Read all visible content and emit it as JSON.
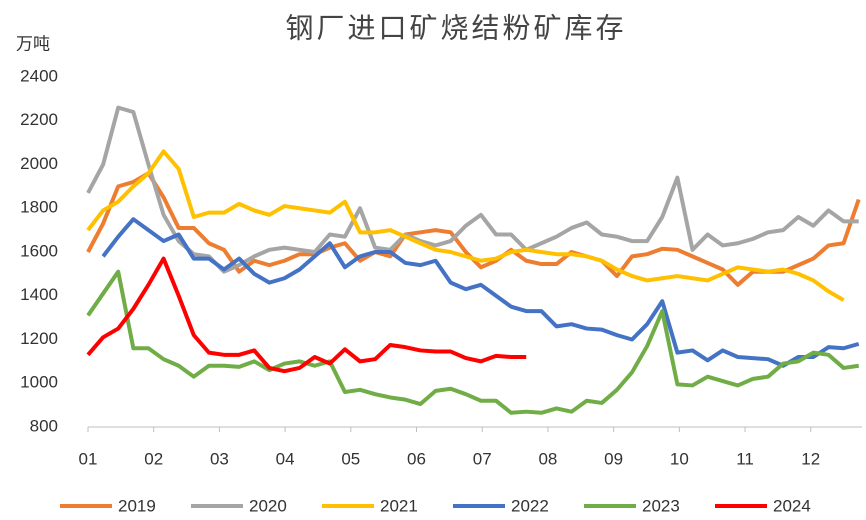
{
  "chart_data": {
    "type": "line",
    "title": "钢厂进口矿烧结粉矿库存",
    "y_label": "万吨",
    "x": [
      1,
      1.23,
      1.46,
      1.69,
      1.92,
      2.15,
      2.38,
      2.61,
      2.84,
      3.07,
      3.3,
      3.53,
      3.76,
      3.99,
      4.22,
      4.45,
      4.68,
      4.91,
      5.14,
      5.37,
      5.6,
      5.83,
      6.06,
      6.29,
      6.52,
      6.75,
      6.98,
      7.21,
      7.44,
      7.67,
      7.9,
      8.13,
      8.36,
      8.59,
      8.82,
      9.05,
      9.28,
      9.51,
      9.74,
      9.97,
      10.2,
      10.43,
      10.66,
      10.89,
      11.12,
      11.35,
      11.58,
      11.81,
      12.04,
      12.27,
      12.5,
      12.73
    ],
    "xlim": [
      1,
      12.78
    ],
    "xticks": [
      {
        "value": 1,
        "label": "01"
      },
      {
        "value": 2,
        "label": "02"
      },
      {
        "value": 3,
        "label": "03"
      },
      {
        "value": 4,
        "label": "04"
      },
      {
        "value": 5,
        "label": "05"
      },
      {
        "value": 6,
        "label": "06"
      },
      {
        "value": 7,
        "label": "07"
      },
      {
        "value": 8,
        "label": "08"
      },
      {
        "value": 9,
        "label": "09"
      },
      {
        "value": 10,
        "label": "10"
      },
      {
        "value": 11,
        "label": "11"
      },
      {
        "value": 12,
        "label": "12"
      }
    ],
    "ylim": [
      800,
      2400
    ],
    "yticks": [
      800,
      1000,
      1200,
      1400,
      1600,
      1800,
      2000,
      2200,
      2400
    ],
    "grid": false,
    "series": [
      {
        "name": "2019",
        "color": "#ED7D31",
        "values": [
          1600,
          1730,
          1900,
          1920,
          1960,
          1850,
          1710,
          1710,
          1640,
          1610,
          1510,
          1560,
          1540,
          1560,
          1590,
          1590,
          1620,
          1640,
          1560,
          1600,
          1580,
          1680,
          1690,
          1700,
          1690,
          1600,
          1530,
          1560,
          1610,
          1560,
          1545,
          1545,
          1600,
          1580,
          1560,
          1490,
          1580,
          1590,
          1615,
          1610,
          1580,
          1550,
          1520,
          1450,
          1510,
          1510,
          1510,
          1540,
          1570,
          1630,
          1640,
          1840
        ]
      },
      {
        "name": "2020",
        "color": "#A5A5A5",
        "values": [
          1870,
          2000,
          2260,
          2240,
          2000,
          1770,
          1650,
          1590,
          1580,
          1510,
          1540,
          1580,
          1610,
          1620,
          1610,
          1600,
          1680,
          1670,
          1800,
          1620,
          1610,
          1680,
          1650,
          1630,
          1650,
          1720,
          1770,
          1680,
          1680,
          1610,
          1640,
          1670,
          1710,
          1735,
          1680,
          1670,
          1650,
          1650,
          1760,
          1940,
          1610,
          1680,
          1630,
          1640,
          1660,
          1690,
          1700,
          1760,
          1720,
          1790,
          1740,
          1740
        ]
      },
      {
        "name": "2021",
        "color": "#FFC000",
        "values": [
          1700,
          1790,
          1830,
          1900,
          1960,
          2060,
          1980,
          1760,
          1780,
          1780,
          1820,
          1790,
          1770,
          1810,
          1800,
          1790,
          1780,
          1830,
          1690,
          1690,
          1700,
          1670,
          1640,
          1610,
          1600,
          1580,
          1560,
          1570,
          1600,
          1610,
          1600,
          1590,
          1590,
          1580,
          1560,
          1520,
          1490,
          1470,
          1480,
          1490,
          1480,
          1470,
          1500,
          1530,
          1520,
          1510,
          1520,
          1500,
          1470,
          1420,
          1380,
          null
        ]
      },
      {
        "name": "2022",
        "color": "#4472C4",
        "values": [
          null,
          1580,
          1670,
          1750,
          1700,
          1650,
          1680,
          1570,
          1570,
          1520,
          1570,
          1500,
          1460,
          1480,
          1520,
          1580,
          1640,
          1530,
          1580,
          1600,
          1600,
          1550,
          1540,
          1560,
          1460,
          1430,
          1450,
          1400,
          1350,
          1330,
          1330,
          1260,
          1270,
          1250,
          1245,
          1220,
          1200,
          1270,
          1375,
          1140,
          1150,
          1105,
          1150,
          1120,
          1115,
          1110,
          1080,
          1120,
          1120,
          1165,
          1160,
          1180
        ]
      },
      {
        "name": "2023",
        "color": "#70AD47",
        "values": [
          1310,
          1410,
          1510,
          1160,
          1160,
          1110,
          1080,
          1030,
          1080,
          1080,
          1075,
          1100,
          1060,
          1090,
          1100,
          1080,
          1100,
          960,
          970,
          950,
          935,
          925,
          905,
          965,
          975,
          950,
          920,
          920,
          865,
          870,
          865,
          885,
          870,
          920,
          910,
          970,
          1050,
          1170,
          1330,
          995,
          990,
          1030,
          1010,
          990,
          1020,
          1030,
          1090,
          1100,
          1140,
          1130,
          1070,
          1080
        ]
      },
      {
        "name": "2024",
        "color": "#FF0000",
        "values": [
          1130,
          1210,
          1250,
          1340,
          1450,
          1570,
          1400,
          1220,
          1140,
          1130,
          1130,
          1150,
          1070,
          1055,
          1070,
          1120,
          1090,
          1155,
          1100,
          1110,
          1175,
          1165,
          1150,
          1145,
          1145,
          1115,
          1100,
          1125,
          1120,
          1120,
          null,
          null,
          null,
          null,
          null,
          null,
          null,
          null,
          null,
          null,
          null,
          null,
          null,
          null,
          null,
          null,
          null,
          null,
          null,
          null,
          null,
          null
        ]
      }
    ]
  }
}
